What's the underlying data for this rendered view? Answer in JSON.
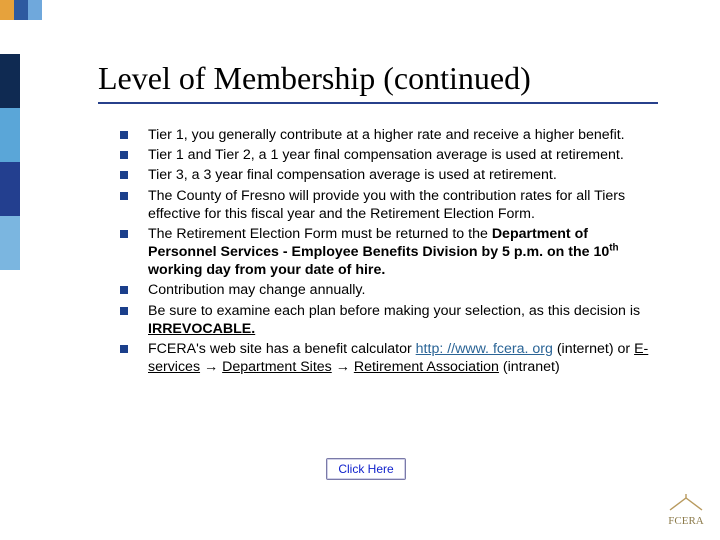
{
  "title": "Level of Membership (continued)",
  "stripe_colors": {
    "top": [
      "#e6a23c",
      "#2e5aa0",
      "#6fa8dc"
    ],
    "left": [
      "#0f2a52",
      "#5aa6d8",
      "#233f8f",
      "#7bb6e0"
    ]
  },
  "underline_color": "#27408b",
  "bullet_color": "#1b3f8b",
  "body_fontsize": 14.2,
  "title_fontsize": 32,
  "bullets": [
    {
      "text": "Tier 1, you generally contribute at a higher rate and receive a higher benefit."
    },
    {
      "text": "Tier 1 and Tier 2, a 1 year final compensation average is used at retirement."
    },
    {
      "text": "Tier 3, a 3 year final compensation average is used at retirement."
    },
    {
      "text": "The County of Fresno will provide you with the contribution rates for all Tiers effective for this fiscal year and the Retirement Election Form."
    },
    {
      "text_html": "The Retirement Election Form must be returned to the <span class='bold'>Department of Personnel Services - Employee Benefits Division by 5 p.m. on the 10<span class='sup'>th</span> working day from your date of hire.</span>"
    },
    {
      "text": "Contribution may change annually."
    },
    {
      "text_html": "Be sure to examine each plan before making your selection, as this decision is <span class='bold ul'>IRREVOCABLE.</span>"
    },
    {
      "text_html": "FCERA's web site has a benefit calculator <span class='link'>http: //www. fcera. org</span> (internet) or  <span class='ul'>E-services</span> <span class='arrow'>&#8594;</span> <span class='ul'>Department Sites</span> <span class='arrow'>&#8594;</span> <span class='ul'>Retirement Association</span> (intranet)"
    }
  ],
  "button_label": "Click Here",
  "logo_text": "FCERA",
  "logo_colors": {
    "roof": "#b89a5e",
    "text": "#8b7a4a",
    "fill": "#ffffff",
    "stroke": "#b89a5e"
  }
}
